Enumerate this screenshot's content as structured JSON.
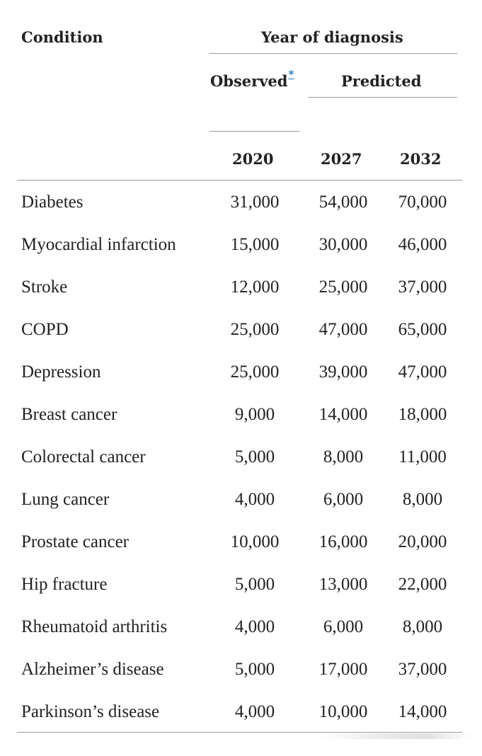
{
  "table": {
    "headers": {
      "condition": "Condition",
      "year_of_diagnosis": "Year of diagnosis",
      "observed": "Observed",
      "observed_footnote": "*",
      "predicted": "Predicted",
      "years": [
        "2020",
        "2027",
        "2032"
      ]
    },
    "rows": [
      {
        "condition": "Diabetes",
        "y2020": "31,000",
        "y2027": "54,000",
        "y2032": "70,000"
      },
      {
        "condition": "Myocardial infarction",
        "y2020": "15,000",
        "y2027": "30,000",
        "y2032": "46,000"
      },
      {
        "condition": "Stroke",
        "y2020": "12,000",
        "y2027": "25,000",
        "y2032": "37,000"
      },
      {
        "condition": "COPD",
        "y2020": "25,000",
        "y2027": "47,000",
        "y2032": "65,000"
      },
      {
        "condition": "Depression",
        "y2020": "25,000",
        "y2027": "39,000",
        "y2032": "47,000"
      },
      {
        "condition": "Breast cancer",
        "y2020": "9,000",
        "y2027": "14,000",
        "y2032": "18,000"
      },
      {
        "condition": "Colorectal cancer",
        "y2020": "5,000",
        "y2027": "8,000",
        "y2032": "11,000"
      },
      {
        "condition": "Lung cancer",
        "y2020": "4,000",
        "y2027": "6,000",
        "y2032": "8,000"
      },
      {
        "condition": "Prostate cancer",
        "y2020": "10,000",
        "y2027": "16,000",
        "y2032": "20,000"
      },
      {
        "condition": "Hip fracture",
        "y2020": "5,000",
        "y2027": "13,000",
        "y2032": "22,000"
      },
      {
        "condition": "Rheumatoid arthritis",
        "y2020": "4,000",
        "y2027": "6,000",
        "y2032": "8,000"
      },
      {
        "condition": "Alzheimer’s disease",
        "y2020": "5,000",
        "y2027": "17,000",
        "y2032": "37,000"
      },
      {
        "condition": "Parkinson’s disease",
        "y2020": "4,000",
        "y2027": "10,000",
        "y2032": "14,000"
      }
    ]
  }
}
